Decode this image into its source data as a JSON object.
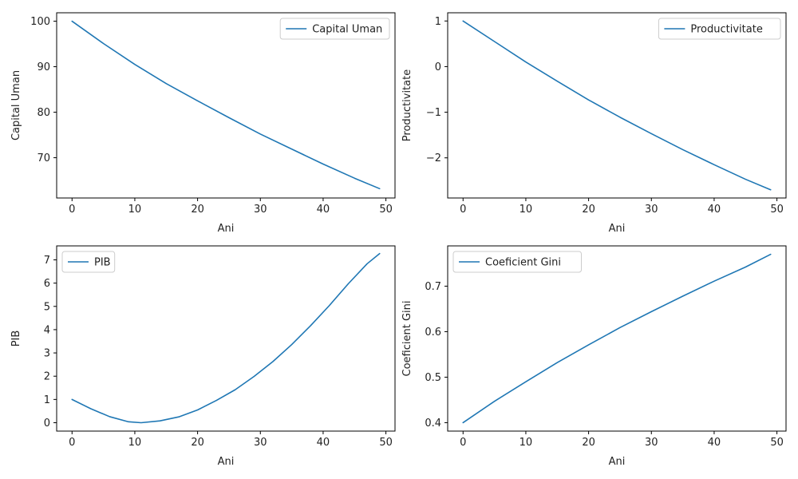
{
  "chart_data": [
    {
      "type": "line",
      "xlabel": "Ani",
      "ylabel": "Capital Uman",
      "xlim": [
        -2.45,
        51.45
      ],
      "ylim": [
        61.15,
        101.85
      ],
      "xticks": [
        0,
        10,
        20,
        30,
        40,
        50
      ],
      "yticks": [
        70,
        80,
        90,
        100
      ],
      "grid": false,
      "legend_position": "top-right",
      "series": [
        {
          "name": "Capital Uman",
          "color": "#1f77b4",
          "x": [
            0,
            5,
            10,
            15,
            20,
            25,
            30,
            35,
            40,
            45,
            49
          ],
          "y": [
            100,
            95.1,
            90.5,
            86.3,
            82.5,
            78.8,
            75.2,
            71.9,
            68.6,
            65.5,
            63.2
          ]
        }
      ]
    },
    {
      "type": "line",
      "xlabel": "Ani",
      "ylabel": "Productivitate",
      "xlim": [
        -2.45,
        51.45
      ],
      "ylim": [
        -2.88,
        1.18
      ],
      "xticks": [
        0,
        10,
        20,
        30,
        40,
        50
      ],
      "yticks": [
        -2,
        -1,
        0,
        1
      ],
      "grid": false,
      "legend_position": "top-right",
      "series": [
        {
          "name": "Productivitate",
          "color": "#1f77b4",
          "x": [
            0,
            5,
            10,
            15,
            20,
            25,
            30,
            35,
            40,
            45,
            49
          ],
          "y": [
            1.0,
            0.55,
            0.1,
            -0.32,
            -0.73,
            -1.11,
            -1.47,
            -1.82,
            -2.15,
            -2.47,
            -2.7
          ]
        }
      ]
    },
    {
      "type": "line",
      "xlabel": "Ani",
      "ylabel": "PIB",
      "xlim": [
        -2.45,
        51.45
      ],
      "ylim": [
        -0.36,
        7.6
      ],
      "xticks": [
        0,
        10,
        20,
        30,
        40,
        50
      ],
      "yticks": [
        0,
        1,
        2,
        3,
        4,
        5,
        6,
        7
      ],
      "grid": false,
      "legend_position": "top-left",
      "series": [
        {
          "name": "PIB",
          "color": "#1f77b4",
          "x": [
            0,
            3,
            6,
            9,
            11,
            14,
            17,
            20,
            23,
            26,
            29,
            32,
            35,
            38,
            41,
            44,
            47,
            49
          ],
          "y": [
            1.0,
            0.6,
            0.26,
            0.04,
            0.0,
            0.08,
            0.25,
            0.55,
            0.96,
            1.42,
            1.99,
            2.63,
            3.36,
            4.17,
            5.04,
            5.97,
            6.83,
            7.27
          ]
        }
      ]
    },
    {
      "type": "line",
      "xlabel": "Ani",
      "ylabel": "Coeficient Gini",
      "xlim": [
        -2.45,
        51.45
      ],
      "ylim": [
        0.3815,
        0.7885
      ],
      "xticks": [
        0,
        10,
        20,
        30,
        40,
        50
      ],
      "yticks": [
        0.4,
        0.5,
        0.6,
        0.7
      ],
      "grid": false,
      "legend_position": "top-left",
      "series": [
        {
          "name": "Coeficient Gini",
          "color": "#1f77b4",
          "x": [
            0,
            5,
            10,
            15,
            20,
            25,
            30,
            35,
            40,
            45,
            49
          ],
          "y": [
            0.4,
            0.447,
            0.49,
            0.532,
            0.571,
            0.609,
            0.644,
            0.678,
            0.711,
            0.742,
            0.77
          ]
        }
      ]
    }
  ]
}
